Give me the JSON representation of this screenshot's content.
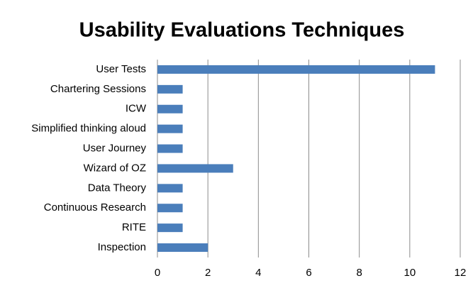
{
  "chart_data": {
    "type": "bar",
    "orientation": "horizontal",
    "title": "Usability Evaluations Techniques",
    "categories": [
      "User Tests",
      "Chartering Sessions",
      "ICW",
      "Simplified thinking aloud",
      "User Journey",
      "Wizard of OZ",
      "Data Theory",
      "Continuous Research",
      "RITE",
      "Inspection"
    ],
    "values": [
      11,
      1,
      1,
      1,
      1,
      3,
      1,
      1,
      1,
      2
    ],
    "color": "#4a7ebb",
    "xlim": [
      0,
      12
    ],
    "xticks": [
      0,
      2,
      4,
      6,
      8,
      10,
      12
    ],
    "grid": true
  }
}
